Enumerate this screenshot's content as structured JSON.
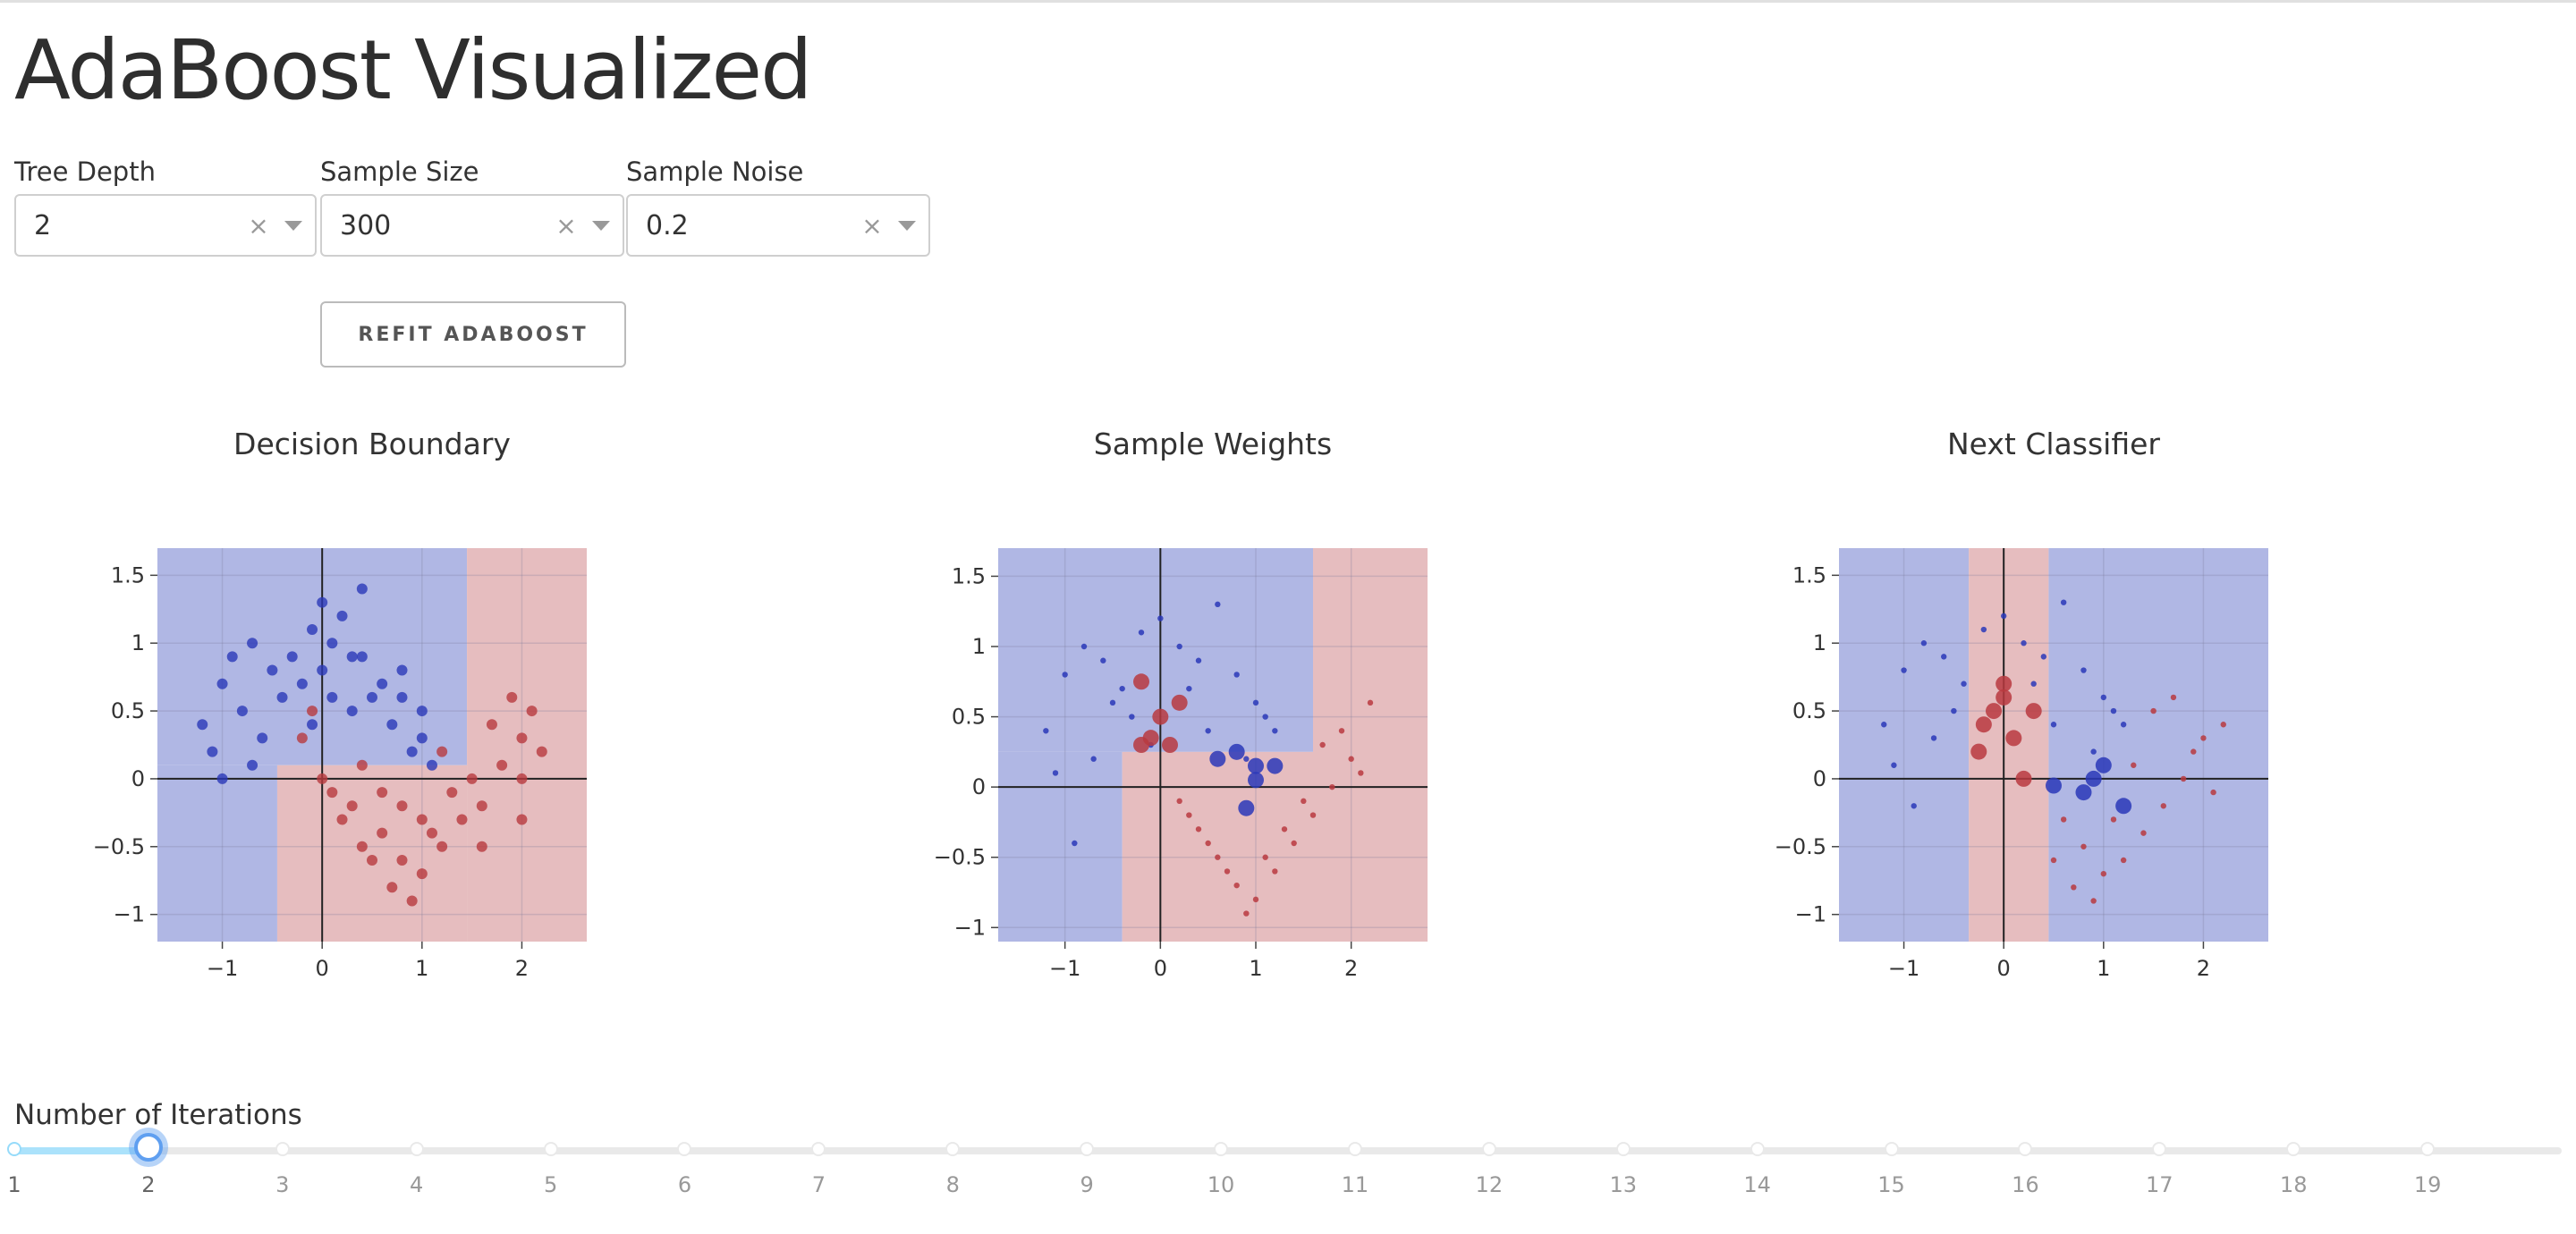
{
  "app": {
    "title": "AdaBoost Visualized"
  },
  "controls": {
    "tree_depth": {
      "label": "Tree Depth",
      "value": "2"
    },
    "sample_size": {
      "label": "Sample Size",
      "value": "300"
    },
    "sample_noise": {
      "label": "Sample Noise",
      "value": "0.2"
    },
    "clear_glyph": "×",
    "refit_label": "REFIT ADABOOST"
  },
  "colors": {
    "blue_region": "#b0b7e4",
    "red_region": "#e6bdbf",
    "blue_point": "#2a38b8",
    "red_point": "#b8393f",
    "axis_line": "#222222"
  },
  "plots": [
    {
      "title": "Decision Boundary",
      "x_ticks": [
        -1,
        0,
        1,
        2
      ],
      "y_ticks": [
        -1,
        -0.5,
        0,
        0.5,
        1,
        1.5
      ],
      "x_tick_labels": [
        "−1",
        "0",
        "1",
        "2"
      ],
      "y_tick_labels": [
        "−1",
        "−0.5",
        "0",
        "0.5",
        "1",
        "1.5"
      ]
    },
    {
      "title": "Sample Weights",
      "x_ticks": [
        -1,
        0,
        1,
        2
      ],
      "y_ticks": [
        -1,
        -0.5,
        0,
        0.5,
        1,
        1.5
      ],
      "x_tick_labels": [
        "−1",
        "0",
        "1",
        "2"
      ],
      "y_tick_labels": [
        "−1",
        "−0.5",
        "0",
        "0.5",
        "1",
        "1.5"
      ]
    },
    {
      "title": "Next Classifier",
      "x_ticks": [
        -1,
        0,
        1,
        2
      ],
      "y_ticks": [
        -1,
        -0.5,
        0,
        0.5,
        1,
        1.5
      ],
      "x_tick_labels": [
        "−1",
        "0",
        "1",
        "2"
      ],
      "y_tick_labels": [
        "−1",
        "−0.5",
        "0",
        "0.5",
        "1",
        "1.5"
      ]
    }
  ],
  "chart_data": [
    {
      "type": "scatter",
      "title": "Decision Boundary",
      "xlim": [
        -1.65,
        2.65
      ],
      "ylim": [
        -1.2,
        1.7
      ],
      "regions": [
        {
          "class": "blue",
          "x0": -1.65,
          "x1": 1.45,
          "y0": 0.1,
          "y1": 1.7
        },
        {
          "class": "blue",
          "x0": -1.65,
          "x1": -0.45,
          "y0": -1.2,
          "y1": 0.1
        },
        {
          "class": "red",
          "x0": 1.45,
          "x1": 2.65,
          "y0": -1.2,
          "y1": 1.7
        },
        {
          "class": "red",
          "x0": -0.45,
          "x1": 1.45,
          "y0": -1.2,
          "y1": 0.1
        }
      ],
      "series": [
        {
          "name": "class 0",
          "color": "#2a38b8",
          "x": [
            -1.2,
            -1.0,
            -0.9,
            -0.7,
            -0.5,
            -0.3,
            -0.1,
            0.1,
            0.2,
            0.4,
            0.6,
            0.8,
            1.0,
            1.1,
            -1.1,
            -0.8,
            -0.6,
            -0.4,
            -0.2,
            0.0,
            0.3,
            0.5,
            0.7,
            0.9,
            1.0,
            -1.0,
            -0.7,
            0.0,
            0.4,
            0.8,
            0.1,
            0.3,
            -0.1
          ],
          "y": [
            0.4,
            0.7,
            0.9,
            1.0,
            0.8,
            0.9,
            1.1,
            1.0,
            1.2,
            0.9,
            0.7,
            0.6,
            0.3,
            0.1,
            0.2,
            0.5,
            0.3,
            0.6,
            0.7,
            0.8,
            0.5,
            0.6,
            0.4,
            0.2,
            0.5,
            0.0,
            0.1,
            1.3,
            1.4,
            0.8,
            0.6,
            0.9,
            0.4
          ]
        },
        {
          "name": "class 1",
          "color": "#b8393f",
          "x": [
            -0.2,
            0.0,
            0.2,
            0.4,
            0.6,
            0.8,
            1.0,
            1.2,
            1.4,
            1.6,
            1.8,
            2.0,
            2.1,
            2.2,
            0.1,
            0.3,
            0.5,
            0.7,
            0.9,
            1.1,
            1.3,
            1.5,
            1.7,
            1.9,
            2.0,
            0.4,
            0.8,
            1.2,
            1.6,
            2.0,
            -0.1,
            0.6,
            1.0
          ],
          "y": [
            0.3,
            0.0,
            -0.3,
            -0.5,
            -0.4,
            -0.6,
            -0.7,
            -0.5,
            -0.3,
            -0.2,
            0.1,
            0.3,
            0.5,
            0.2,
            -0.1,
            -0.2,
            -0.6,
            -0.8,
            -0.9,
            -0.4,
            -0.1,
            0.0,
            0.4,
            0.6,
            -0.3,
            0.1,
            -0.2,
            0.2,
            -0.5,
            0.0,
            0.5,
            -0.1,
            -0.3
          ]
        }
      ]
    },
    {
      "type": "scatter",
      "title": "Sample Weights",
      "xlim": [
        -1.7,
        2.8
      ],
      "ylim": [
        -1.1,
        1.7
      ],
      "regions": [
        {
          "class": "blue",
          "x0": -1.7,
          "x1": 1.6,
          "y0": 0.25,
          "y1": 1.7
        },
        {
          "class": "blue",
          "x0": -1.7,
          "x1": -0.4,
          "y0": -1.1,
          "y1": 0.25
        },
        {
          "class": "red",
          "x0": 1.6,
          "x1": 2.8,
          "y0": -1.1,
          "y1": 1.7
        },
        {
          "class": "red",
          "x0": -0.4,
          "x1": 1.6,
          "y0": -1.1,
          "y1": 0.25
        }
      ],
      "series": [
        {
          "name": "class 0",
          "color": "#2a38b8",
          "x": [
            -1.2,
            -1.0,
            -0.8,
            -0.6,
            -0.4,
            -0.2,
            0.0,
            0.2,
            0.4,
            0.6,
            0.8,
            1.0,
            1.2,
            -1.1,
            -0.9,
            -0.7,
            -0.5,
            -0.3,
            -0.1,
            0.3,
            0.5,
            0.9,
            1.1,
            0.6,
            0.8,
            1.0,
            1.0,
            1.2,
            0.9
          ],
          "y": [
            0.4,
            0.8,
            1.0,
            0.9,
            0.7,
            1.1,
            1.2,
            1.0,
            0.9,
            1.3,
            0.8,
            0.6,
            0.4,
            0.1,
            -0.4,
            0.2,
            0.6,
            0.5,
            0.3,
            0.7,
            0.4,
            0.2,
            0.5,
            0.2,
            0.25,
            0.15,
            0.05,
            0.15,
            -0.15
          ],
          "sizes": [
            1,
            1,
            1,
            1,
            1,
            1,
            1,
            1,
            1,
            1,
            1,
            1,
            1,
            1,
            1,
            1,
            1,
            1,
            1,
            1,
            1,
            1,
            1,
            2,
            2,
            2,
            2,
            2,
            2
          ]
        },
        {
          "name": "class 1",
          "color": "#b8393f",
          "x": [
            0.2,
            0.4,
            0.6,
            0.8,
            1.0,
            1.2,
            1.4,
            1.6,
            1.8,
            2.0,
            2.2,
            0.3,
            0.5,
            0.7,
            0.9,
            1.1,
            1.3,
            1.5,
            1.7,
            1.9,
            2.1,
            -0.2,
            -0.1,
            0.0,
            0.2,
            -0.2,
            0.1
          ],
          "y": [
            -0.1,
            -0.3,
            -0.5,
            -0.7,
            -0.8,
            -0.6,
            -0.4,
            -0.2,
            0.0,
            0.2,
            0.6,
            -0.2,
            -0.4,
            -0.6,
            -0.9,
            -0.5,
            -0.3,
            -0.1,
            0.3,
            0.4,
            0.1,
            0.75,
            0.35,
            0.5,
            0.6,
            0.3,
            0.3
          ],
          "sizes": [
            1,
            1,
            1,
            1,
            1,
            1,
            1,
            1,
            1,
            1,
            1,
            1,
            1,
            1,
            1,
            1,
            1,
            1,
            1,
            1,
            1,
            2,
            2,
            2,
            2,
            2,
            2
          ]
        }
      ]
    },
    {
      "type": "scatter",
      "title": "Next Classifier",
      "xlim": [
        -1.65,
        2.65
      ],
      "ylim": [
        -1.2,
        1.7
      ],
      "regions": [
        {
          "class": "blue",
          "x0": -1.65,
          "x1": -0.35,
          "y0": -1.2,
          "y1": 1.7
        },
        {
          "class": "red",
          "x0": -0.35,
          "x1": 0.45,
          "y0": -1.2,
          "y1": 1.7
        },
        {
          "class": "blue",
          "x0": 0.45,
          "x1": 2.65,
          "y0": -1.2,
          "y1": 1.7
        }
      ],
      "series": [
        {
          "name": "class 0",
          "color": "#2a38b8",
          "x": [
            -1.2,
            -1.0,
            -0.8,
            -0.6,
            -0.4,
            -0.2,
            0.0,
            0.2,
            0.4,
            0.6,
            0.8,
            1.0,
            1.2,
            -1.1,
            -0.9,
            -0.7,
            -0.5,
            0.3,
            0.5,
            0.9,
            1.1,
            0.5,
            0.8,
            0.9,
            1.0,
            1.2
          ],
          "y": [
            0.4,
            0.8,
            1.0,
            0.9,
            0.7,
            1.1,
            1.2,
            1.0,
            0.9,
            1.3,
            0.8,
            0.6,
            0.4,
            0.1,
            -0.2,
            0.3,
            0.5,
            0.7,
            0.4,
            0.2,
            0.5,
            -0.05,
            -0.1,
            0.0,
            0.1,
            -0.2
          ],
          "sizes": [
            1,
            1,
            1,
            1,
            1,
            1,
            1,
            1,
            1,
            1,
            1,
            1,
            1,
            1,
            1,
            1,
            1,
            1,
            1,
            1,
            1,
            2,
            2,
            2,
            2,
            2
          ]
        },
        {
          "name": "class 1",
          "color": "#b8393f",
          "x": [
            0.6,
            0.8,
            1.0,
            1.2,
            1.4,
            1.6,
            1.8,
            2.0,
            2.2,
            0.9,
            1.1,
            1.3,
            1.5,
            1.7,
            1.9,
            2.1,
            0.5,
            0.7,
            -0.25,
            -0.1,
            0.0,
            0.1,
            0.2,
            -0.2,
            0.0,
            0.3
          ],
          "y": [
            -0.3,
            -0.5,
            -0.7,
            -0.6,
            -0.4,
            -0.2,
            0.0,
            0.3,
            0.4,
            -0.9,
            -0.3,
            0.1,
            0.5,
            0.6,
            0.2,
            -0.1,
            -0.6,
            -0.8,
            0.2,
            0.5,
            0.7,
            0.3,
            0.0,
            0.4,
            0.6,
            0.5
          ],
          "sizes": [
            1,
            1,
            1,
            1,
            1,
            1,
            1,
            1,
            1,
            1,
            1,
            1,
            1,
            1,
            1,
            1,
            1,
            1,
            2,
            2,
            2,
            2,
            2,
            2,
            2,
            2
          ]
        }
      ]
    }
  ],
  "slider": {
    "label": "Number of Iterations",
    "min": 1,
    "max": 20,
    "value": 2,
    "marks": [
      "1",
      "2",
      "3",
      "4",
      "5",
      "6",
      "7",
      "8",
      "9",
      "10",
      "11",
      "12",
      "13",
      "14",
      "15",
      "16",
      "17",
      "18",
      "19"
    ]
  }
}
